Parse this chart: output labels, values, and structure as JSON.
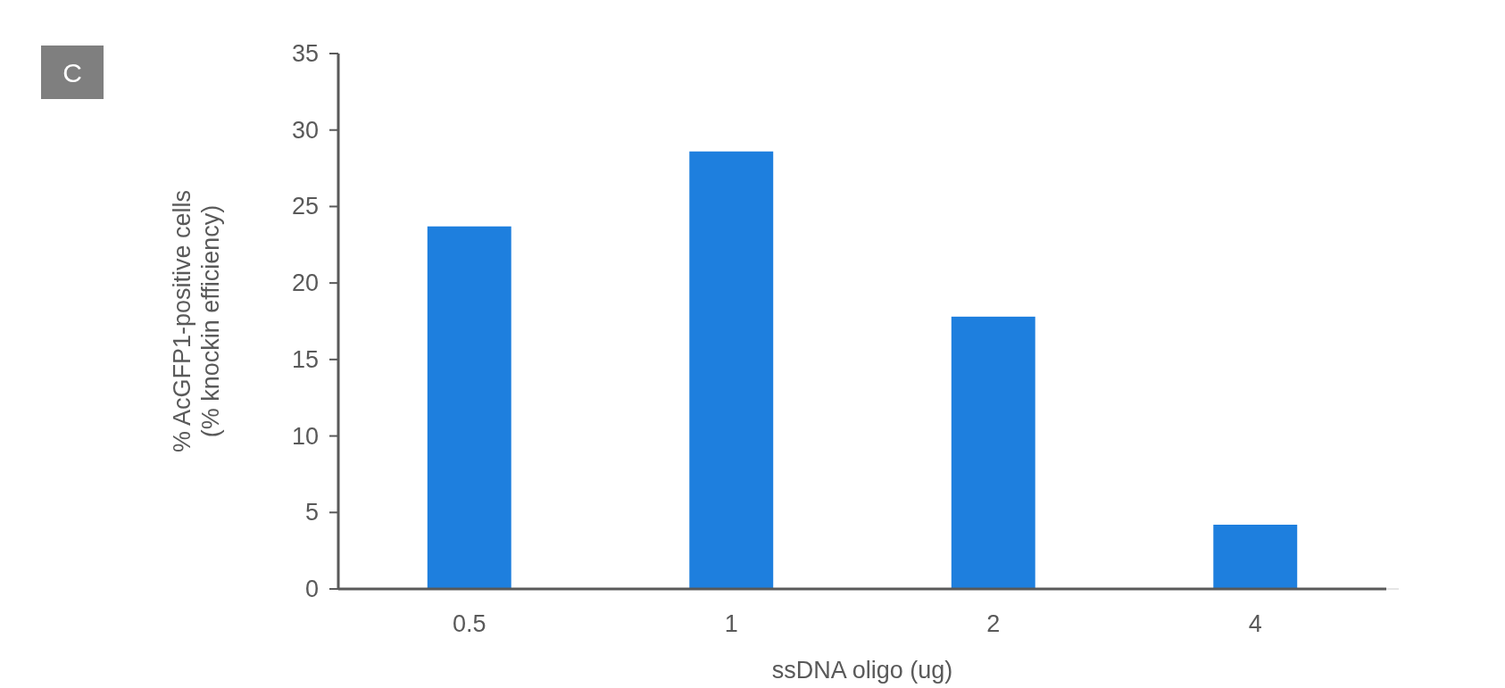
{
  "chart_data": {
    "type": "bar",
    "categories": [
      "0.5",
      "1",
      "2",
      "4"
    ],
    "values": [
      23.7,
      28.6,
      17.8,
      4.2
    ],
    "color": "#1e7fde",
    "xlabel": "ssDNA oligo (ug)",
    "ylabel": "% AcGFP1-positive cells\n(% knockin efficiency)",
    "ylim": [
      0,
      35
    ],
    "yticks": [
      0,
      5,
      10,
      15,
      20,
      25,
      30,
      35
    ],
    "grid": false,
    "annotations": [
      "C"
    ]
  }
}
